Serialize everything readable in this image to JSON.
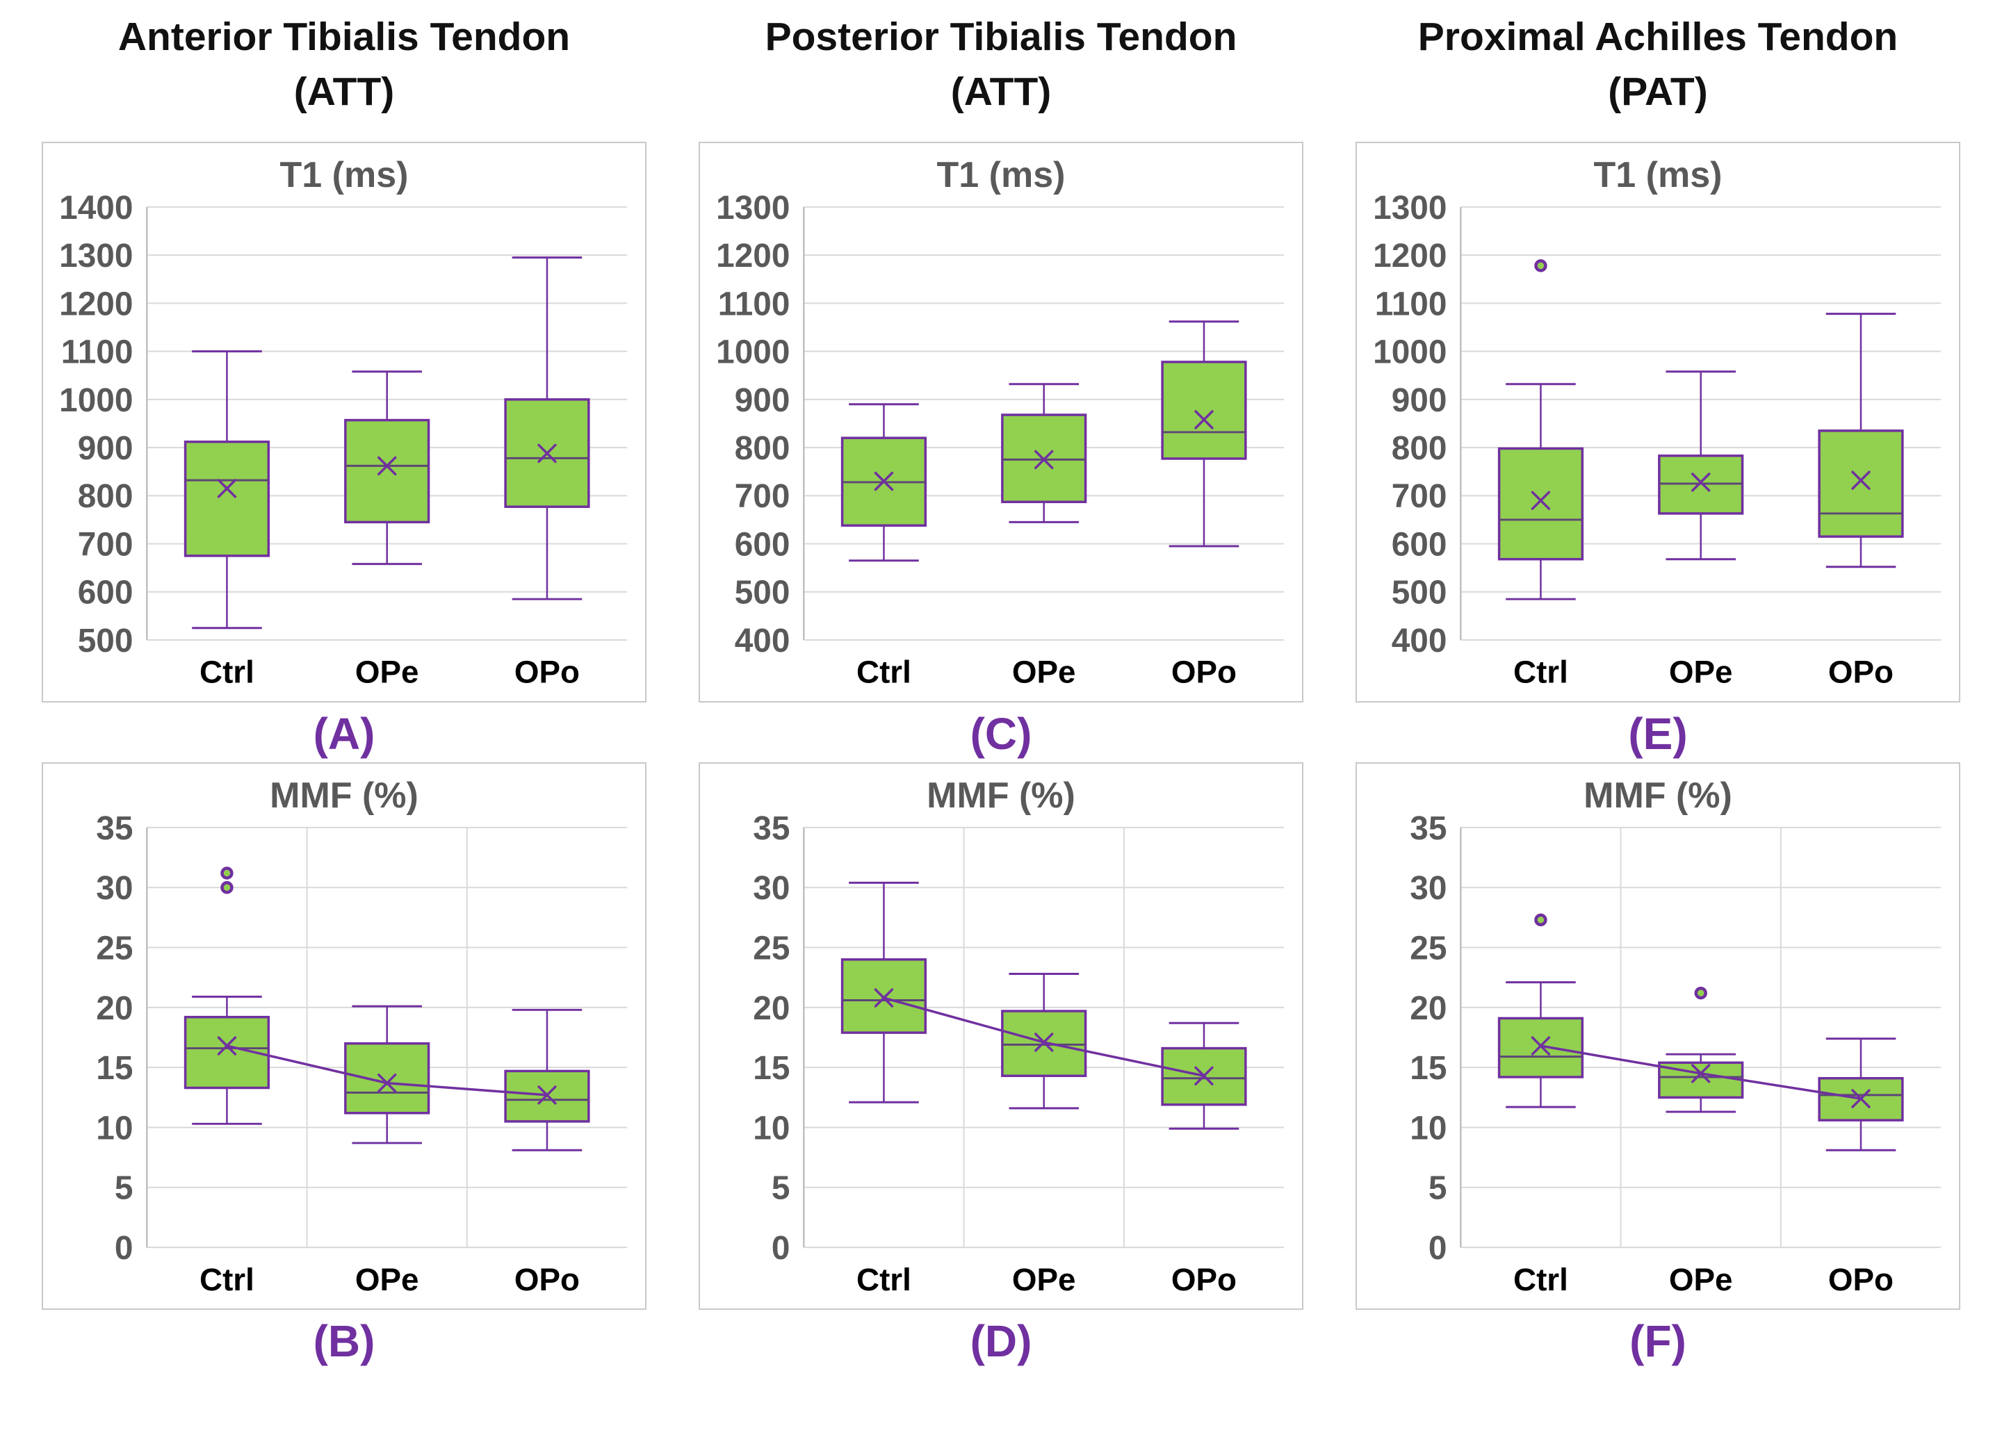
{
  "figure_caption": "",
  "columns": [
    {
      "title": "Anterior Tibialis Tendon",
      "subtitle": "(ATT)"
    },
    {
      "title": "Posterior Tibialis Tendon",
      "subtitle": "(ATT)"
    },
    {
      "title": "Proximal Achilles Tendon",
      "subtitle": "(PAT)"
    }
  ],
  "palette": {
    "box_fill": "#92D050",
    "box_border": "#7030A0",
    "median_line": "#5C4776",
    "mean_marker": "#7030A0",
    "mean_line": "#7030A0",
    "outlier_ring": "#7030A0",
    "outlier_fill": "#92D050",
    "gridline": "#D9D9D9",
    "axis_line": "#BFBFBF",
    "tick_label": "#595959",
    "category_label": "#000000",
    "panel_letter": "#7030A0",
    "panel_border": "#C9C9C9"
  },
  "chart_data": [
    {
      "id": "A",
      "type": "box",
      "title": "T1 (ms)",
      "panel_label": "(A)",
      "tendon": "Anterior Tibialis Tendon (ATT)",
      "categories": [
        "Ctrl",
        "OPe",
        "OPo"
      ],
      "ylim": [
        500,
        1400
      ],
      "ytick_step": 100,
      "grid": {
        "horizontal": true,
        "vertical": false
      },
      "legend": "none",
      "mean_line": false,
      "series": [
        {
          "category": "Ctrl",
          "whisker_low": 525,
          "q1": 675,
          "median": 832,
          "q3": 912,
          "whisker_high": 1100,
          "mean": 815,
          "outliers": []
        },
        {
          "category": "OPe",
          "whisker_low": 658,
          "q1": 745,
          "median": 862,
          "q3": 957,
          "whisker_high": 1058,
          "mean": 862,
          "outliers": []
        },
        {
          "category": "OPo",
          "whisker_low": 585,
          "q1": 777,
          "median": 878,
          "q3": 1000,
          "whisker_high": 1295,
          "mean": 888,
          "outliers": []
        }
      ]
    },
    {
      "id": "B",
      "type": "box",
      "title": "MMF (%)",
      "panel_label": "(B)",
      "tendon": "Anterior Tibialis Tendon (ATT)",
      "categories": [
        "Ctrl",
        "OPe",
        "OPo"
      ],
      "ylim": [
        0,
        35
      ],
      "ytick_step": 5,
      "grid": {
        "horizontal": true,
        "vertical": true
      },
      "legend": "none",
      "mean_line": true,
      "series": [
        {
          "category": "Ctrl",
          "whisker_low": 10.3,
          "q1": 13.3,
          "median": 16.6,
          "q3": 19.2,
          "whisker_high": 20.9,
          "mean": 16.8,
          "outliers": [
            30.0,
            31.2
          ]
        },
        {
          "category": "OPe",
          "whisker_low": 8.7,
          "q1": 11.2,
          "median": 12.9,
          "q3": 17.0,
          "whisker_high": 20.1,
          "mean": 13.7,
          "outliers": []
        },
        {
          "category": "OPo",
          "whisker_low": 8.1,
          "q1": 10.5,
          "median": 12.3,
          "q3": 14.7,
          "whisker_high": 19.8,
          "mean": 12.7,
          "outliers": []
        }
      ]
    },
    {
      "id": "C",
      "type": "box",
      "title": "T1 (ms)",
      "panel_label": "(C)",
      "tendon": "Posterior Tibialis Tendon (ATT)",
      "categories": [
        "Ctrl",
        "OPe",
        "OPo"
      ],
      "ylim": [
        400,
        1300
      ],
      "ytick_step": 100,
      "grid": {
        "horizontal": true,
        "vertical": false
      },
      "legend": "none",
      "mean_line": false,
      "series": [
        {
          "category": "Ctrl",
          "whisker_low": 565,
          "q1": 638,
          "median": 728,
          "q3": 820,
          "whisker_high": 890,
          "mean": 730,
          "outliers": []
        },
        {
          "category": "OPe",
          "whisker_low": 645,
          "q1": 687,
          "median": 775,
          "q3": 868,
          "whisker_high": 932,
          "mean": 775,
          "outliers": []
        },
        {
          "category": "OPo",
          "whisker_low": 595,
          "q1": 777,
          "median": 832,
          "q3": 978,
          "whisker_high": 1062,
          "mean": 858,
          "outliers": []
        }
      ]
    },
    {
      "id": "D",
      "type": "box",
      "title": "MMF (%)",
      "panel_label": "(D)",
      "tendon": "Posterior Tibialis Tendon (ATT)",
      "categories": [
        "Ctrl",
        "OPe",
        "OPo"
      ],
      "ylim": [
        0,
        35
      ],
      "ytick_step": 5,
      "grid": {
        "horizontal": true,
        "vertical": true
      },
      "legend": "none",
      "mean_line": true,
      "series": [
        {
          "category": "Ctrl",
          "whisker_low": 12.1,
          "q1": 17.9,
          "median": 20.6,
          "q3": 24.0,
          "whisker_high": 30.4,
          "mean": 20.8,
          "outliers": []
        },
        {
          "category": "OPe",
          "whisker_low": 11.6,
          "q1": 14.3,
          "median": 16.9,
          "q3": 19.7,
          "whisker_high": 22.8,
          "mean": 17.1,
          "outliers": []
        },
        {
          "category": "OPo",
          "whisker_low": 9.9,
          "q1": 11.9,
          "median": 14.1,
          "q3": 16.6,
          "whisker_high": 18.7,
          "mean": 14.3,
          "outliers": []
        }
      ]
    },
    {
      "id": "E",
      "type": "box",
      "title": "T1 (ms)",
      "panel_label": "(E)",
      "tendon": "Proximal Achilles Tendon (PAT)",
      "categories": [
        "Ctrl",
        "OPe",
        "OPo"
      ],
      "ylim": [
        400,
        1300
      ],
      "ytick_step": 100,
      "grid": {
        "horizontal": true,
        "vertical": false
      },
      "legend": "none",
      "mean_line": false,
      "series": [
        {
          "category": "Ctrl",
          "whisker_low": 485,
          "q1": 568,
          "median": 650,
          "q3": 798,
          "whisker_high": 932,
          "mean": 690,
          "outliers": [
            1178
          ]
        },
        {
          "category": "OPe",
          "whisker_low": 568,
          "q1": 663,
          "median": 725,
          "q3": 783,
          "whisker_high": 958,
          "mean": 728,
          "outliers": []
        },
        {
          "category": "OPo",
          "whisker_low": 552,
          "q1": 615,
          "median": 663,
          "q3": 835,
          "whisker_high": 1078,
          "mean": 732,
          "outliers": []
        }
      ]
    },
    {
      "id": "F",
      "type": "box",
      "title": "MMF (%)",
      "panel_label": "(F)",
      "tendon": "Proximal Achilles Tendon (PAT)",
      "categories": [
        "Ctrl",
        "OPe",
        "OPo"
      ],
      "ylim": [
        0,
        35
      ],
      "ytick_step": 5,
      "grid": {
        "horizontal": true,
        "vertical": true
      },
      "legend": "none",
      "mean_line": true,
      "series": [
        {
          "category": "Ctrl",
          "whisker_low": 11.7,
          "q1": 14.2,
          "median": 15.9,
          "q3": 19.1,
          "whisker_high": 22.1,
          "mean": 16.8,
          "outliers": [
            27.3
          ]
        },
        {
          "category": "OPe",
          "whisker_low": 11.3,
          "q1": 12.5,
          "median": 14.2,
          "q3": 15.4,
          "whisker_high": 16.1,
          "mean": 14.5,
          "outliers": [
            21.2
          ]
        },
        {
          "category": "OPo",
          "whisker_low": 8.1,
          "q1": 10.6,
          "median": 12.7,
          "q3": 14.1,
          "whisker_high": 17.4,
          "mean": 12.4,
          "outliers": []
        }
      ]
    }
  ]
}
